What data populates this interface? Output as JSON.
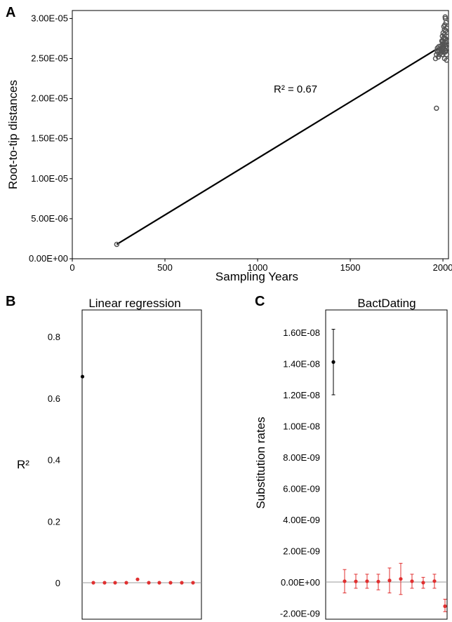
{
  "colors": {
    "black": "#000000",
    "red": "#e03030",
    "point_gray": "#555555",
    "zero_line": "#999999"
  },
  "chart_data": [
    {
      "panel": "A",
      "type": "scatter",
      "xlabel": "Sampling Years",
      "ylabel": "Root-to-tip distances",
      "annotation": "R² = 0.67",
      "xlim": [
        0,
        2030
      ],
      "ylim": [
        0,
        3.1e-05
      ],
      "xticks": [
        {
          "value": 0,
          "label": "0"
        },
        {
          "value": 500,
          "label": "500"
        },
        {
          "value": 1000,
          "label": "1000"
        },
        {
          "value": 1500,
          "label": "1500"
        },
        {
          "value": 2000,
          "label": "2000"
        }
      ],
      "yticks": [
        {
          "value": 0,
          "label": "0.00E+00"
        },
        {
          "value": 5e-06,
          "label": "5.00E-06"
        },
        {
          "value": 1e-05,
          "label": "1.00E-05"
        },
        {
          "value": 1.5e-05,
          "label": "1.50E-05"
        },
        {
          "value": 2e-05,
          "label": "2.00E-05"
        },
        {
          "value": 2.5e-05,
          "label": "2.50E-05"
        },
        {
          "value": 3e-05,
          "label": "3.00E-05"
        }
      ],
      "regression_line": {
        "x": [
          240,
          2010
        ],
        "y": [
          1.8e-06,
          2.68e-05
        ]
      },
      "points": [
        [
          240,
          1.8e-06
        ],
        [
          1965,
          1.88e-05
        ],
        [
          1960,
          2.5e-05
        ],
        [
          1965,
          2.55e-05
        ],
        [
          1968,
          2.6e-05
        ],
        [
          1970,
          2.63e-05
        ],
        [
          1972,
          2.58e-05
        ],
        [
          1975,
          2.52e-05
        ],
        [
          1978,
          2.65e-05
        ],
        [
          1980,
          2.6e-05
        ],
        [
          1982,
          2.55e-05
        ],
        [
          1985,
          2.62e-05
        ],
        [
          1987,
          2.57e-05
        ],
        [
          1990,
          2.66e-05
        ],
        [
          1992,
          2.6e-05
        ],
        [
          1994,
          2.72e-05
        ],
        [
          1995,
          2.62e-05
        ],
        [
          1996,
          2.55e-05
        ],
        [
          1997,
          2.78e-05
        ],
        [
          1998,
          2.68e-05
        ],
        [
          1999,
          2.6e-05
        ],
        [
          2000,
          2.72e-05
        ],
        [
          2001,
          2.82e-05
        ],
        [
          2002,
          2.65e-05
        ],
        [
          2003,
          2.58e-05
        ],
        [
          2004,
          2.75e-05
        ],
        [
          2005,
          2.9e-05
        ],
        [
          2006,
          2.62e-05
        ],
        [
          2007,
          2.7e-05
        ],
        [
          2008,
          2.8e-05
        ],
        [
          2009,
          2.5e-05
        ],
        [
          2010,
          2.92e-05
        ],
        [
          2011,
          2.67e-05
        ],
        [
          2012,
          3.02e-05
        ],
        [
          2013,
          2.75e-05
        ],
        [
          2014,
          2.6e-05
        ],
        [
          2015,
          2.85e-05
        ],
        [
          2016,
          2.7e-05
        ],
        [
          2017,
          2.95e-05
        ],
        [
          2018,
          2.63e-05
        ],
        [
          2019,
          2.78e-05
        ],
        [
          2020,
          2.55e-05
        ],
        [
          2013,
          3e-05
        ],
        [
          2008,
          2.86e-05
        ],
        [
          2004,
          2.68e-05
        ],
        [
          2018,
          2.72e-05
        ],
        [
          2011,
          2.58e-05
        ],
        [
          2015,
          2.65e-05
        ],
        [
          2019,
          2.88e-05
        ],
        [
          2006,
          2.76e-05
        ],
        [
          2020,
          2.48e-05
        ]
      ]
    },
    {
      "panel": "B",
      "type": "scatter",
      "title": "Linear regression",
      "ylabel": "R²",
      "ylim": [
        -0.005,
        0.8
      ],
      "yticks": [
        {
          "value": 0,
          "label": "0"
        },
        {
          "value": 0.2,
          "label": "0.2"
        },
        {
          "value": 0.4,
          "label": "0.4"
        },
        {
          "value": 0.6,
          "label": "0.6"
        },
        {
          "value": 0.8,
          "label": "0.8"
        }
      ],
      "zero_line": 0,
      "series": [
        {
          "values": [
            0.67
          ],
          "color": "#000000"
        },
        {
          "values": [
            0.0,
            0.0,
            0.0,
            0.0,
            0.011,
            0.0,
            0.0,
            0.0,
            0.0,
            0.0
          ],
          "color": "#e03030"
        }
      ]
    },
    {
      "panel": "C",
      "type": "scatter",
      "title": "BactDating",
      "ylabel": "Substitution rates",
      "ylim": [
        -2.5e-09,
        1.75e-08
      ],
      "yticks": [
        {
          "value": -2e-09,
          "label": "-2.00E-09"
        },
        {
          "value": 0,
          "label": "0.00E+00"
        },
        {
          "value": 2e-09,
          "label": "2.00E-09"
        },
        {
          "value": 4e-09,
          "label": "4.00E-09"
        },
        {
          "value": 6e-09,
          "label": "6.00E-09"
        },
        {
          "value": 8e-09,
          "label": "8.00E-09"
        },
        {
          "value": 1e-08,
          "label": "1.00E-08"
        },
        {
          "value": 1.2e-08,
          "label": "1.20E-08"
        },
        {
          "value": 1.4e-08,
          "label": "1.40E-08"
        },
        {
          "value": 1.6e-08,
          "label": "1.60E-08"
        }
      ],
      "zero_line": 0,
      "series": [
        {
          "color": "#000000",
          "points": [
            {
              "value": 1.41e-08,
              "lo": 1.2e-08,
              "hi": 1.62e-08
            }
          ]
        },
        {
          "color": "#e03030",
          "points": [
            {
              "value": 5e-11,
              "lo": -7e-10,
              "hi": 8e-10
            },
            {
              "value": 4e-11,
              "lo": -4e-10,
              "hi": 5e-10
            },
            {
              "value": 5e-11,
              "lo": -4e-10,
              "hi": 5e-10
            },
            {
              "value": 3e-11,
              "lo": -5e-10,
              "hi": 5e-10
            },
            {
              "value": 1e-10,
              "lo": -7e-10,
              "hi": 9e-10
            },
            {
              "value": 2e-10,
              "lo": -8e-10,
              "hi": 1.2e-09
            },
            {
              "value": 5e-11,
              "lo": -4e-10,
              "hi": 5e-10
            },
            {
              "value": -4e-11,
              "lo": -4e-10,
              "hi": 3e-10
            },
            {
              "value": 6e-11,
              "lo": -4e-10,
              "hi": 5e-10
            },
            {
              "value": -1.55e-09,
              "lo": -1.9e-09,
              "hi": -1.1e-09
            }
          ]
        }
      ]
    }
  ],
  "panels": {
    "a_label": "A",
    "b_label": "B",
    "c_label": "C"
  }
}
